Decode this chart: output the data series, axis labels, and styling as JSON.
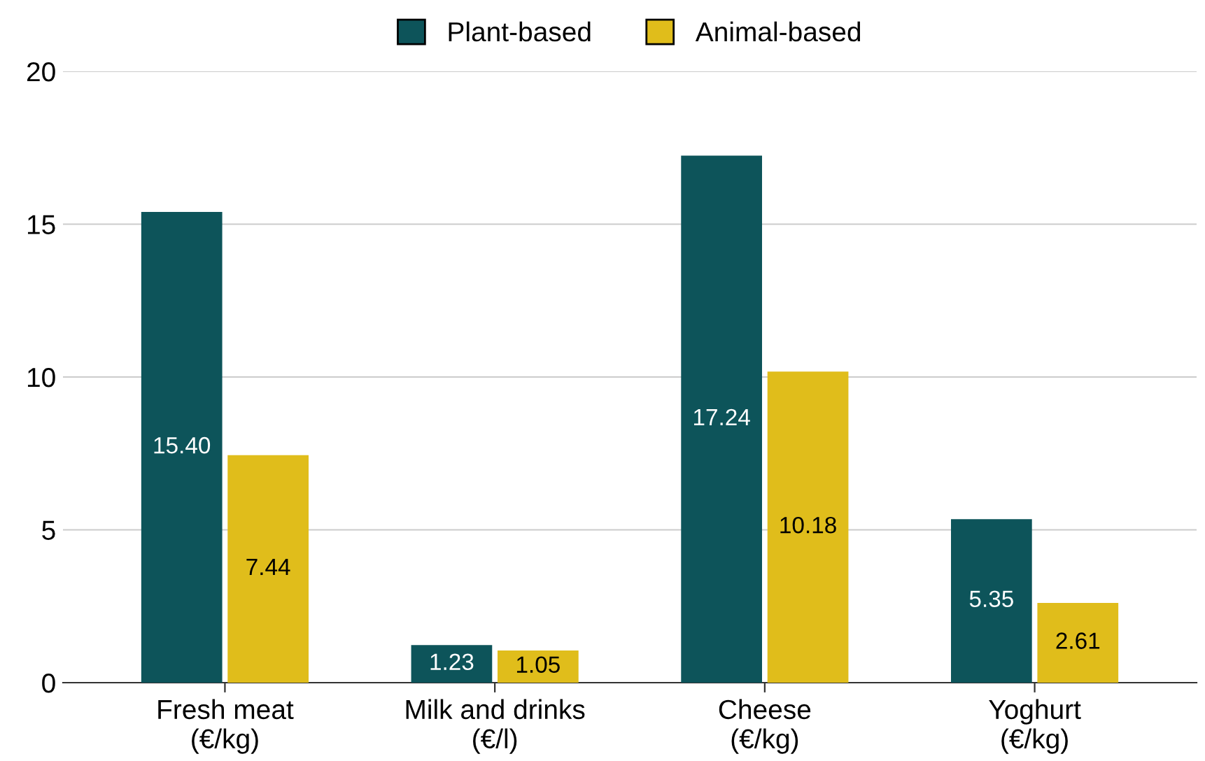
{
  "chart_data": {
    "type": "bar",
    "categories": [
      "Fresh meat\n(€/kg)",
      "Milk and drinks\n(€/l)",
      "Cheese\n(€/kg)",
      "Yoghurt\n(€/kg)"
    ],
    "series": [
      {
        "name": "Plant-based",
        "color": "#0d545a",
        "values": [
          15.4,
          1.23,
          17.24,
          5.35
        ]
      },
      {
        "name": "Animal-based",
        "color": "#e0bd1b",
        "values": [
          7.44,
          1.05,
          10.18,
          2.61
        ]
      }
    ],
    "ylim": [
      0,
      20
    ],
    "yticks": [
      0,
      5,
      10,
      15,
      20
    ],
    "grid": "y",
    "legend": "top",
    "value_labels": [
      [
        "15.40",
        "1.23",
        "17.24",
        "5.35"
      ],
      [
        "7.44",
        "1.05",
        "10.18",
        "2.61"
      ]
    ]
  }
}
